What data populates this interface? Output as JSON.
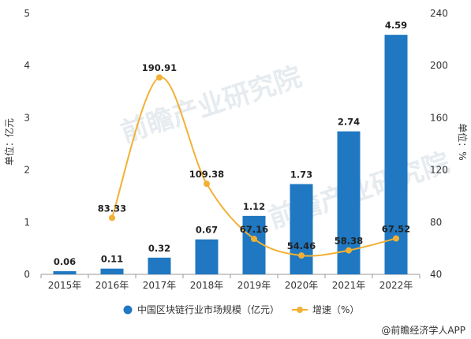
{
  "chart_data": {
    "type": "bar",
    "categories": [
      "2015年",
      "2016年",
      "2017年",
      "2018年",
      "2019年",
      "2020年",
      "2021年",
      "2022年"
    ],
    "series": [
      {
        "name": "中国区块链行业市场规模（亿元）",
        "chart_type": "bar",
        "axis": "left",
        "color": "#1f78c1",
        "values": [
          0.06,
          0.11,
          0.32,
          0.67,
          1.12,
          1.73,
          2.74,
          4.59
        ],
        "labels": [
          "0.06",
          "0.11",
          "0.32",
          "0.67",
          "1.12",
          "1.73",
          "2.74",
          "4.59"
        ]
      },
      {
        "name": "增速（%）",
        "chart_type": "line",
        "axis": "right",
        "color": "#f2b134",
        "values": [
          null,
          83.33,
          190.91,
          109.38,
          67.16,
          54.46,
          58.38,
          67.52
        ],
        "labels": [
          "",
          "83.33",
          "190.91",
          "109.38",
          "67.16",
          "54.46",
          "58.38",
          "67.52"
        ]
      }
    ],
    "y_left": {
      "label": "单位：亿元",
      "min": 0,
      "max": 5,
      "ticks": [
        "0",
        "1",
        "2",
        "3",
        "4",
        "5"
      ]
    },
    "y_right": {
      "label": "单位：%",
      "min": 40,
      "max": 240,
      "ticks": [
        "40",
        "80",
        "120",
        "160",
        "200",
        "240"
      ]
    },
    "grid": false,
    "legend": "bottom"
  },
  "watermark": {
    "text": "前瞻产业研究院"
  },
  "source": {
    "text": "@前瞻经济学人APP"
  }
}
